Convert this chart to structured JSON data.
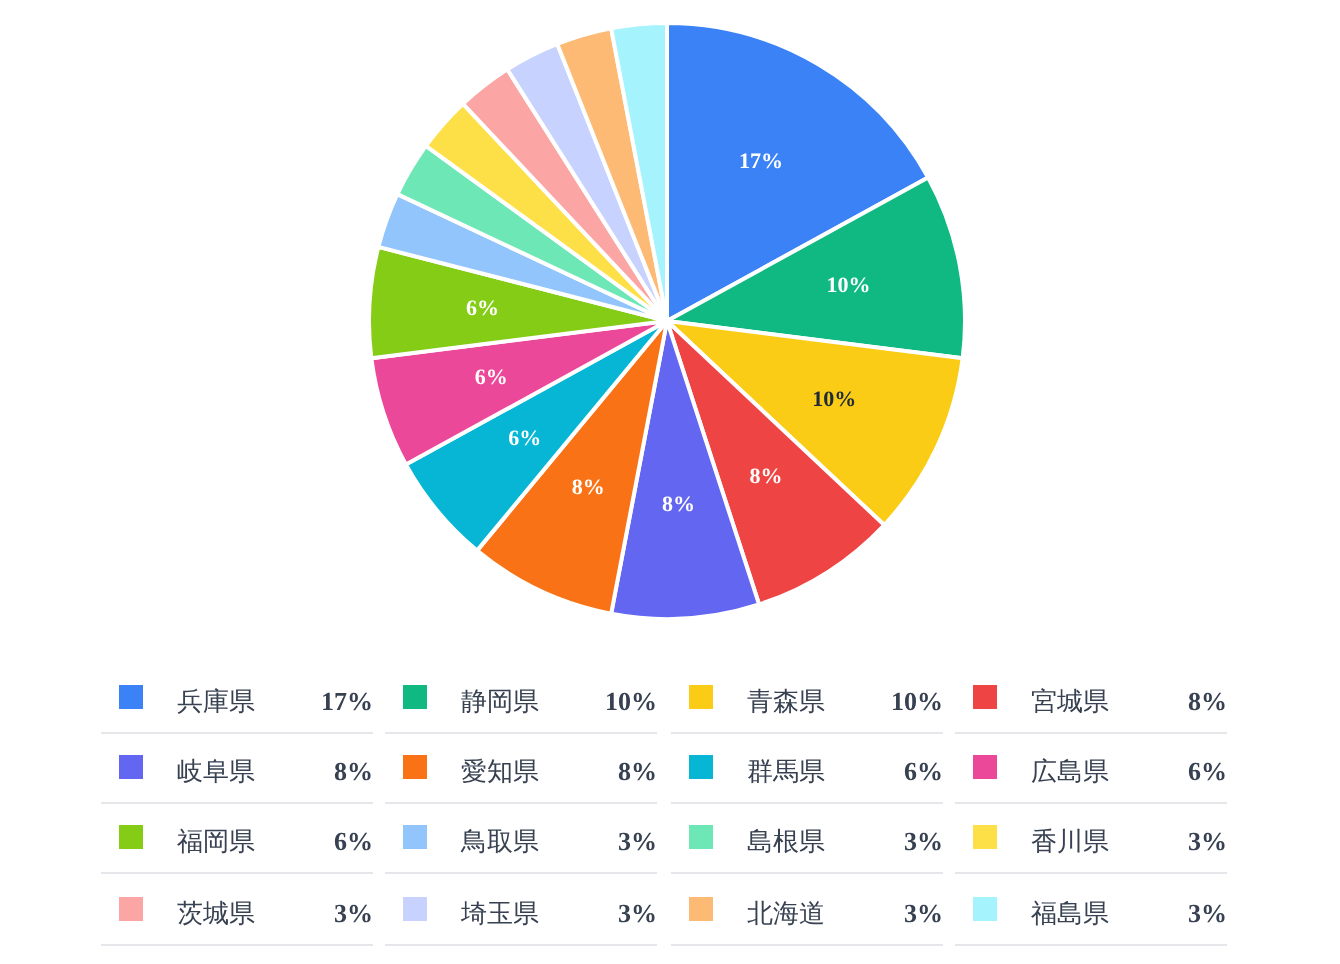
{
  "chart_data": {
    "type": "pie",
    "categories": [
      "兵庫県",
      "静岡県",
      "青森県",
      "宮城県",
      "岐阜県",
      "愛知県",
      "群馬県",
      "広島県",
      "福岡県",
      "鳥取県",
      "島根県",
      "香川県",
      "茨城県",
      "埼玉県",
      "北海道",
      "福島県"
    ],
    "values": [
      17,
      10,
      10,
      8,
      8,
      8,
      6,
      6,
      6,
      3,
      3,
      3,
      3,
      3,
      3,
      3
    ],
    "colors": [
      "#3b82f6",
      "#10b981",
      "#facc15",
      "#ef4444",
      "#6366f1",
      "#f97316",
      "#06b6d4",
      "#ec4899",
      "#84cc16",
      "#93c5fd",
      "#6ee7b7",
      "#fde047",
      "#fca5a5",
      "#c7d2fe",
      "#fdba74",
      "#a5f3fc"
    ],
    "value_labels": [
      "17%",
      "10%",
      "10%",
      "8%",
      "8%",
      "8%",
      "6%",
      "6%",
      "6%",
      "3%",
      "3%",
      "3%",
      "3%",
      "3%",
      "3%",
      "3%"
    ],
    "legend": "bottom"
  }
}
